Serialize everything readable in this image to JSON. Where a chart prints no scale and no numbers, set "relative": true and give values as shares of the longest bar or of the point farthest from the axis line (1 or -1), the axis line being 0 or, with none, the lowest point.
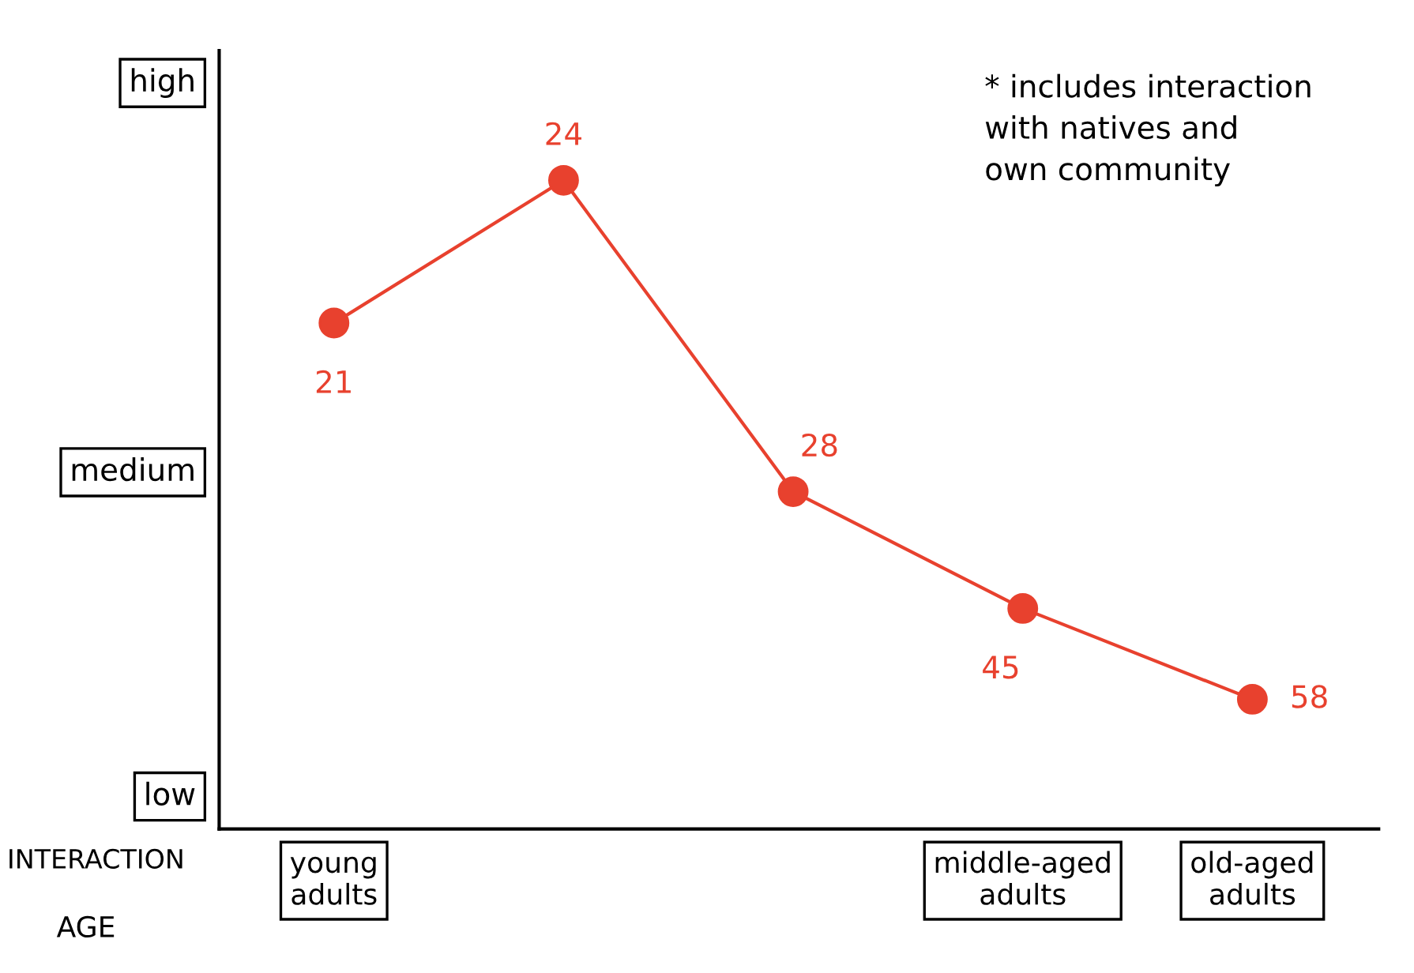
{
  "chart_data": {
    "type": "line",
    "xlabel": "AGE",
    "ylabel": "INTERACTION",
    "categories": [
      "young adults",
      null,
      null,
      "middle-aged adults",
      "old-aged adults"
    ],
    "relative": true,
    "series": [
      {
        "color": "#e8412e",
        "values": [
          0.78,
          1,
          0.52,
          0.34,
          0.2
        ]
      }
    ],
    "marker": "circle",
    "line_style": "solid",
    "annotations": [
      "* includes interaction\nwith natives and\nown community",
      "low",
      "medium",
      "high",
      "21",
      "24",
      "28",
      "45",
      "58"
    ]
  }
}
